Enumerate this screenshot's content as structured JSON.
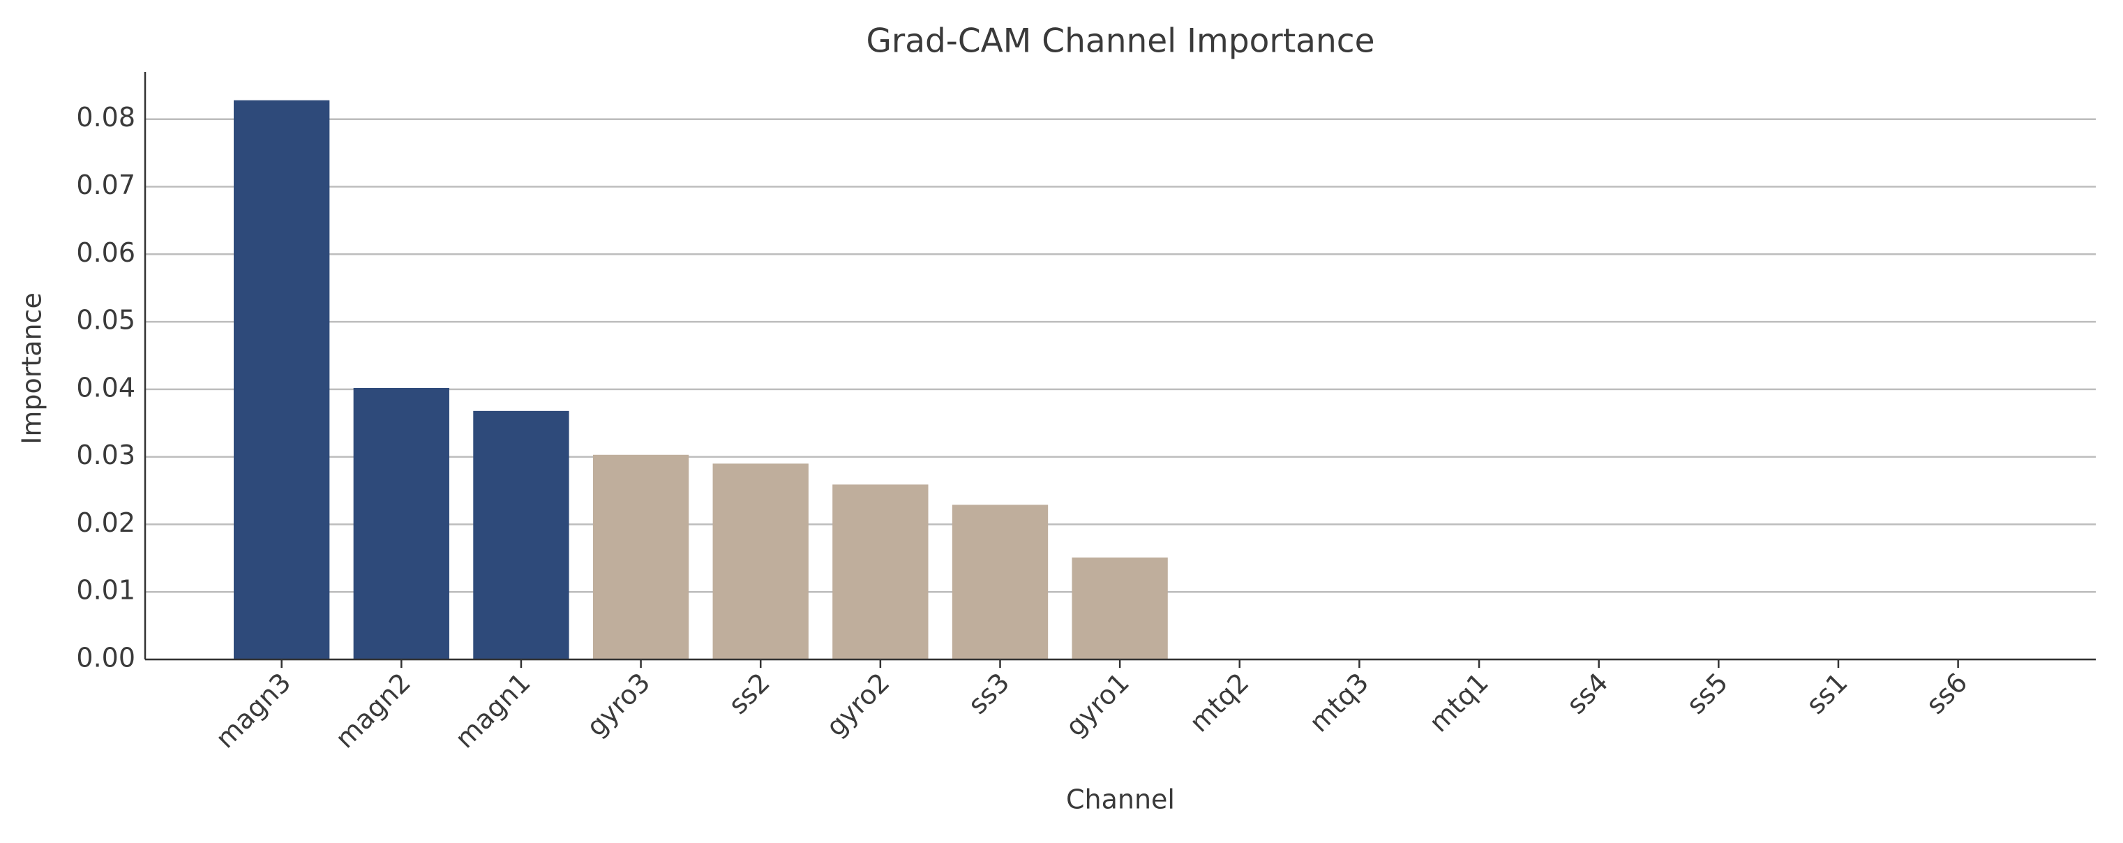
{
  "chart_data": {
    "type": "bar",
    "title": "Grad-CAM Channel Importance",
    "x_label": "Channel",
    "y_label": "Importance",
    "categories": [
      "magn3",
      "magn2",
      "magn1",
      "gyro3",
      "ss2",
      "gyro2",
      "ss3",
      "gyro1",
      "mtq2",
      "mtq3",
      "mtq1",
      "ss4",
      "ss5",
      "ss1",
      "ss6"
    ],
    "values": [
      0.0828,
      0.0402,
      0.0368,
      0.0303,
      0.029,
      0.0259,
      0.0229,
      0.0151,
      0,
      0,
      0,
      0,
      0,
      0,
      0
    ],
    "colors": [
      "#2e4a7a",
      "#2e4a7a",
      "#2e4a7a",
      "#bfae9c",
      "#bfae9c",
      "#bfae9c",
      "#bfae9c",
      "#bfae9c",
      "#bfae9c",
      "#bfae9c",
      "#bfae9c",
      "#bfae9c",
      "#bfae9c",
      "#bfae9c",
      "#bfae9c"
    ],
    "ylim": [
      0,
      0.087
    ],
    "yticks": [
      {
        "value": 0,
        "label": "0.00"
      },
      0.01,
      0.02,
      0.03,
      0.04,
      0.05,
      0.06,
      0.07,
      0.08
    ],
    "grid": true
  }
}
